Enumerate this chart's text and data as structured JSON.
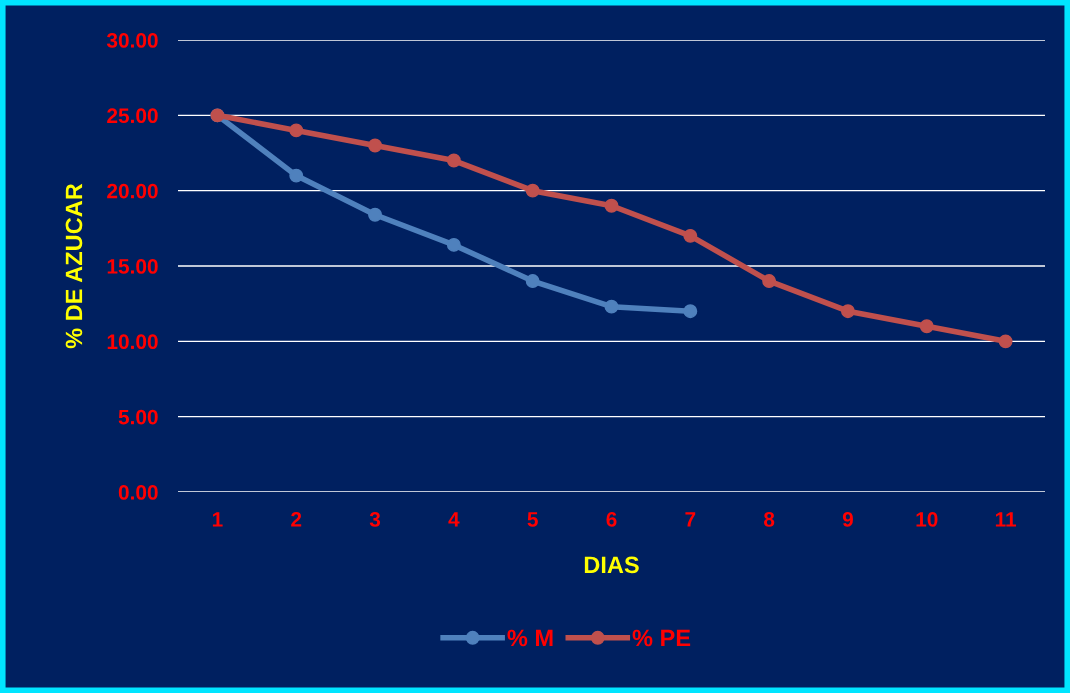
{
  "chart_data": {
    "type": "line",
    "xlabel": "DIAS",
    "ylabel": "% DE AZUCAR",
    "categories": [
      "1",
      "2",
      "3",
      "4",
      "5",
      "6",
      "7",
      "8",
      "9",
      "10",
      "11"
    ],
    "series": [
      {
        "name": "% M",
        "color": "#4f81bd",
        "values": [
          25,
          21.0,
          18.4,
          16.4,
          14.0,
          12.3,
          12.0,
          null,
          null,
          null,
          null
        ]
      },
      {
        "name": "% PE",
        "color": "#c0504d",
        "values": [
          25,
          24,
          23,
          22,
          20,
          19,
          17,
          14,
          12,
          11,
          10
        ]
      }
    ],
    "ylim": [
      0,
      30
    ],
    "yticks": [
      {
        "value": 0,
        "label": "0.00"
      },
      {
        "value": 5,
        "label": "5.00"
      },
      {
        "value": 10,
        "label": "10.00"
      },
      {
        "value": 15,
        "label": "15.00"
      },
      {
        "value": 20,
        "label": "20.00"
      },
      {
        "value": 25,
        "label": "25.00"
      },
      {
        "value": 30,
        "label": "30.00"
      }
    ],
    "grid": "y",
    "legend": "bottom",
    "marker": "circle",
    "line_style": "solid"
  }
}
